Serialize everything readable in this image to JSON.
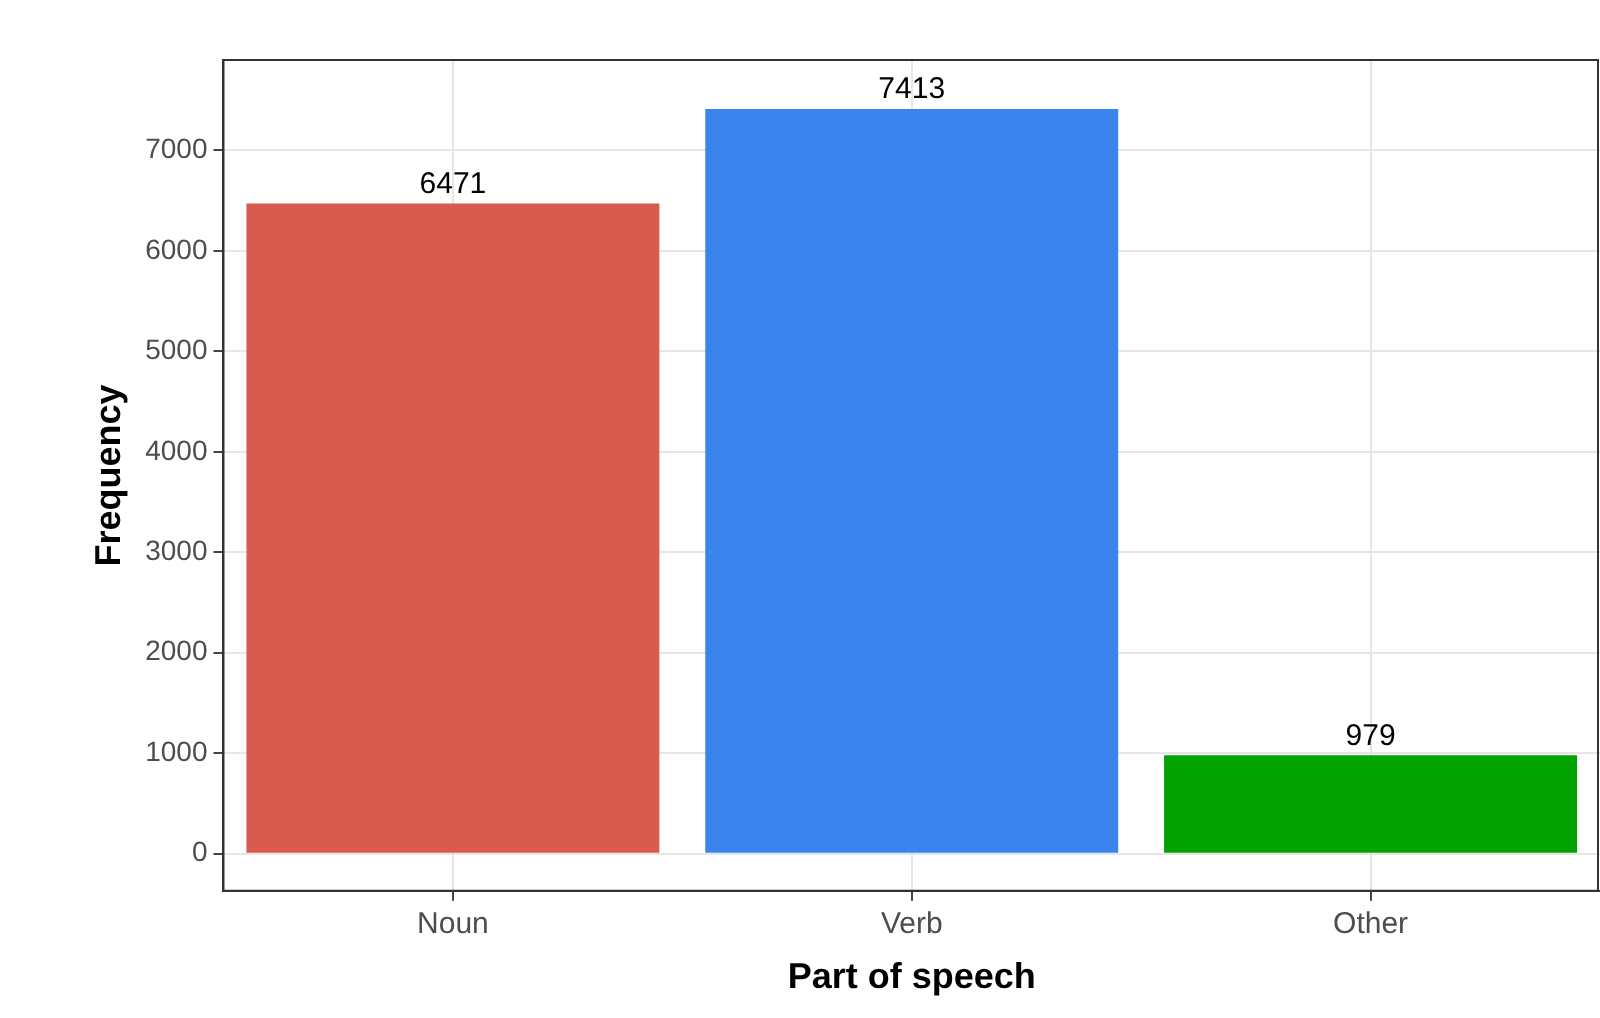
{
  "chart_data": {
    "type": "bar",
    "xlabel": "Part of speech",
    "ylabel": "Frequency",
    "categories": [
      "Noun",
      "Verb",
      "Other"
    ],
    "values": [
      6471,
      7413,
      979
    ],
    "colors": [
      "#d95b50",
      "#3a84ee",
      "#00a300"
    ],
    "ylim": [
      -370,
      7900
    ],
    "yticks": [
      0,
      1000,
      2000,
      3000,
      4000,
      5000,
      6000,
      7000
    ],
    "grid": true,
    "data_labels": true
  }
}
